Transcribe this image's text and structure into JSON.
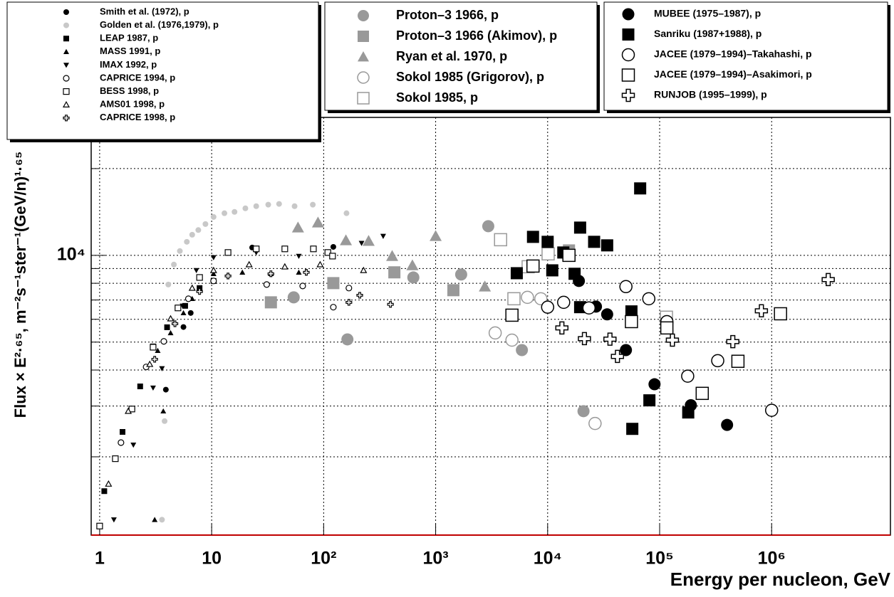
{
  "chart_data": {
    "type": "scatter",
    "x_label": "Energy per nucleon, GeV",
    "y_label": "Flux × E²·⁶⁵, m⁻²s⁻¹ster⁻¹(GeV/n)¹·⁶⁵",
    "log_x": true,
    "log_y": true,
    "grid": true,
    "xlim": [
      0.84,
      11500000
    ],
    "ylim": [
      1070,
      30100
    ],
    "xticks": [
      1,
      10,
      {
        "value": 100,
        "label": "10²"
      },
      {
        "value": 1000,
        "label": "10³"
      },
      {
        "value": 10000,
        "label": "10⁴"
      },
      {
        "value": 100000,
        "label": "10⁵"
      },
      {
        "value": 1000000,
        "label": "10⁶"
      }
    ],
    "yticks": [
      {
        "value": 10000,
        "label": "10⁴"
      }
    ],
    "yminorticks": [
      2000,
      3000,
      4000,
      5000,
      6000,
      7000,
      8000,
      9000,
      20000
    ],
    "series": [
      {
        "name": "Smith et al. (1972), p",
        "color": "#000000",
        "marker": "circle",
        "x": [
          3.9,
          5.6,
          6.5,
          23,
          122
        ],
        "y": [
          3420,
          5640,
          6310,
          10640,
          10700
        ]
      },
      {
        "name": "Golden et al. (1976,1979), p",
        "color": "#c8c8c8",
        "marker": "circle",
        "x": [
          3.6,
          3.8,
          4.1,
          4.6,
          5.2,
          6.0,
          6.7,
          7.6,
          8.8,
          10.4,
          13,
          16,
          20,
          25,
          32,
          40,
          55,
          80,
          160
        ],
        "y": [
          1210,
          2660,
          7920,
          9290,
          10350,
          11140,
          11790,
          12240,
          12840,
          13590,
          14000,
          14150,
          14560,
          14810,
          14990,
          15080,
          14810,
          14990,
          14000
        ]
      },
      {
        "name": "LEAP 1987, p",
        "color": "#000000",
        "marker": "square",
        "x": [
          1.1,
          1.6,
          2.3,
          3.0,
          4.0,
          5.8,
          7.8,
          10.4
        ],
        "y": [
          1520,
          2440,
          3510,
          4830,
          5630,
          6680,
          7700,
          8150
        ]
      },
      {
        "name": "MASS 1991, p",
        "color": "#000000",
        "marker": "triangle-up",
        "x": [
          3.1,
          3.7,
          3.3,
          4.3,
          5.6,
          6.7,
          10.4,
          18.8,
          33.8,
          60
        ],
        "y": [
          1210,
          2880,
          4670,
          5380,
          6310,
          7070,
          8630,
          8730,
          8630,
          8730
        ]
      },
      {
        "name": "IMAX 1992, p",
        "color": "#000000",
        "marker": "triangle-down",
        "x": [
          1.34,
          2.0,
          3.0,
          3.6,
          5.5,
          7.3,
          10.4,
          25,
          60,
          218,
          340
        ],
        "y": [
          1210,
          2200,
          3470,
          4050,
          6680,
          8870,
          9830,
          10230,
          9940,
          11020,
          11660
        ]
      },
      {
        "name": "CAPRICE 1994, p",
        "color": "#000000",
        "marker": "circle-open",
        "x": [
          1.55,
          1.94,
          2.6,
          3.74,
          6.2,
          10.4,
          31,
          65,
          122,
          168
        ],
        "y": [
          2240,
          2930,
          4100,
          5030,
          7070,
          8150,
          7920,
          7830,
          6610,
          7700
        ]
      },
      {
        "name": "BESS 1998, p",
        "color": "#000000",
        "marker": "square-open",
        "x": [
          1,
          1.38,
          1.94,
          3,
          5,
          7.8,
          14,
          25,
          45,
          81,
          109,
          120
        ],
        "y": [
          1150,
          1970,
          2930,
          4800,
          6570,
          8380,
          10230,
          10530,
          10530,
          10530,
          10230,
          9940
        ]
      },
      {
        "name": "AMS01 1998, p",
        "color": "#000000",
        "marker": "triangle-open",
        "x": [
          1.2,
          1.8,
          2.8,
          4.3,
          6.7,
          10.4,
          21.6,
          45,
          93,
          227
        ],
        "y": [
          1610,
          2880,
          4190,
          6030,
          7700,
          8870,
          9290,
          9130,
          9290,
          8870
        ]
      },
      {
        "name": "CAPRICE 1998, p",
        "color": "#000000",
        "marker": "cross-open",
        "x": [
          3.1,
          4.7,
          7.8,
          14,
          33.8,
          70,
          168,
          210,
          395
        ],
        "y": [
          4360,
          5790,
          7490,
          8480,
          8630,
          8730,
          6870,
          7270,
          6760
        ]
      },
      {
        "name": "Proton–3 1966, p",
        "color": "#999999",
        "marker": "circle",
        "x": [
          54,
          163,
          632,
          1690,
          2950,
          5890,
          20900
        ],
        "y": [
          7150,
          5110,
          8380,
          8580,
          12620,
          4690,
          2880
        ]
      },
      {
        "name": "Proton–3 1966 (Akimov), p",
        "color": "#999999",
        "marker": "square",
        "x": [
          33.8,
          122,
          428,
          1440,
          15500
        ],
        "y": [
          6870,
          8010,
          8730,
          7570,
          10400
        ]
      },
      {
        "name": "Ryan et al. 1970, p",
        "color": "#999999",
        "marker": "triangle-up",
        "x": [
          59,
          89,
          158,
          252,
          409,
          620,
          1000,
          2750
        ],
        "y": [
          12480,
          12990,
          11270,
          11210,
          9940,
          9230,
          11660,
          7790
        ]
      },
      {
        "name": "Sokol 1985 (Grigorov), p",
        "color": "#999999",
        "marker": "circle-open",
        "x": [
          3400,
          4800,
          6600,
          8700,
          26500
        ],
        "y": [
          5380,
          5080,
          7150,
          7070,
          2610
        ]
      },
      {
        "name": "Sokol 1985, p",
        "color": "#999999",
        "marker": "square-open",
        "x": [
          3800,
          5000,
          6700,
          10100,
          115000
        ],
        "y": [
          11330,
          7070,
          9130,
          10120,
          6100
        ]
      },
      {
        "name": "MUBEE (1975–1987), p",
        "color": "#000000",
        "marker": "circle",
        "x": [
          19000,
          27000,
          34000,
          50000,
          90000,
          190000,
          400000
        ],
        "y": [
          8150,
          6640,
          6240,
          4690,
          3570,
          3020,
          2580
        ]
      },
      {
        "name": "Sanriku (1987+1988), p",
        "color": "#000000",
        "marker": "square",
        "x": [
          5300,
          7400,
          10000,
          11000,
          13800,
          17400,
          19500,
          19500,
          26000,
          34000,
          56000,
          57000,
          67000,
          81000,
          180000
        ],
        "y": [
          8670,
          11590,
          11140,
          8870,
          10230,
          8630,
          12480,
          6610,
          11140,
          10830,
          6390,
          2500,
          17070,
          3140,
          2850
        ]
      },
      {
        "name": "JACEE (1979–1994)–Takahashi, p",
        "color": "#000000",
        "marker": "circle-open",
        "x": [
          10000,
          13900,
          23400,
          50000,
          80000,
          116000,
          178000,
          330000,
          1000000
        ],
        "y": [
          6610,
          6870,
          6570,
          7790,
          7070,
          5890,
          3810,
          4310,
          2900
        ]
      },
      {
        "name": "JACEE (1979–1994)–Asakimori, p",
        "color": "#000000",
        "marker": "square-open",
        "x": [
          4800,
          7400,
          15500,
          56000,
          116000,
          240000,
          500000,
          1200000
        ],
        "y": [
          6200,
          9180,
          10000,
          5890,
          5600,
          3320,
          4290,
          6270
        ]
      },
      {
        "name": "RUNJOB (1995–1999), p",
        "color": "#000000",
        "marker": "cross-open",
        "x": [
          13400,
          21300,
          36000,
          42000,
          130000,
          450000,
          810000,
          3200000
        ],
        "y": [
          5600,
          5140,
          5120,
          4460,
          5080,
          5020,
          6420,
          8240
        ]
      }
    ]
  }
}
